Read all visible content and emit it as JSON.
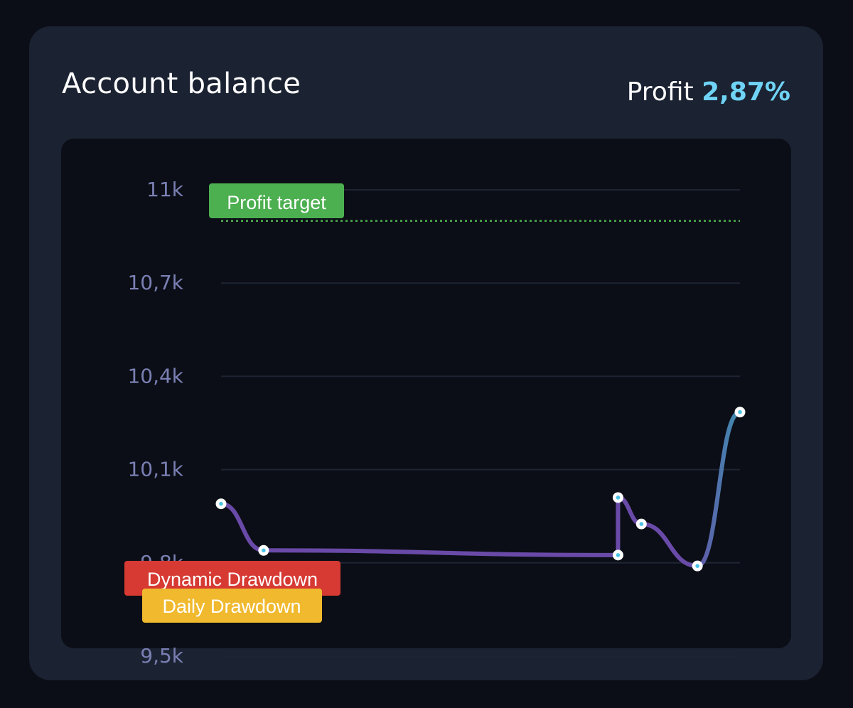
{
  "card": {
    "title": "Account balance",
    "profit_label": "Profit",
    "profit_value": "2,87%"
  },
  "colors": {
    "background": "#0b0e16",
    "card": "#1b2232",
    "line": "#6a4aa8",
    "line_end": "#3e8fb0",
    "axis_text": "#7a7fb3",
    "profit_value": "#6fd3f5",
    "profit_target": "#4caf50",
    "dynamic_drawdown": "#d63a33",
    "daily_drawdown": "#f0b92e"
  },
  "chart_data": {
    "type": "line",
    "title": "",
    "xlabel": "",
    "ylabel": "",
    "ylim": [
      9500,
      11000
    ],
    "ytick_values": [
      11000,
      10700,
      10400,
      10100,
      9800,
      9500
    ],
    "ytick_labels": [
      "11k",
      "10,7k",
      "10,4k",
      "10,1k",
      "9,8k",
      "9,5k"
    ],
    "grid": true,
    "series": [
      {
        "x": [
          0,
          1,
          2,
          3,
          4,
          5,
          6
        ],
        "y": [
          9990,
          9840,
          9825,
          10010,
          9925,
          9790,
          10285
        ]
      }
    ],
    "x_positions": [
      0,
      0.082,
      0.765,
      0.765,
      0.81,
      0.918,
      1
    ],
    "reference_lines": {
      "profit_target": {
        "label": "Profit target",
        "value": 10900
      },
      "dynamic_drawdown": {
        "label": "Dynamic Drawdown",
        "value": 9750
      },
      "daily_drawdown": {
        "label": "Daily Drawdown",
        "value": 9660
      }
    }
  }
}
